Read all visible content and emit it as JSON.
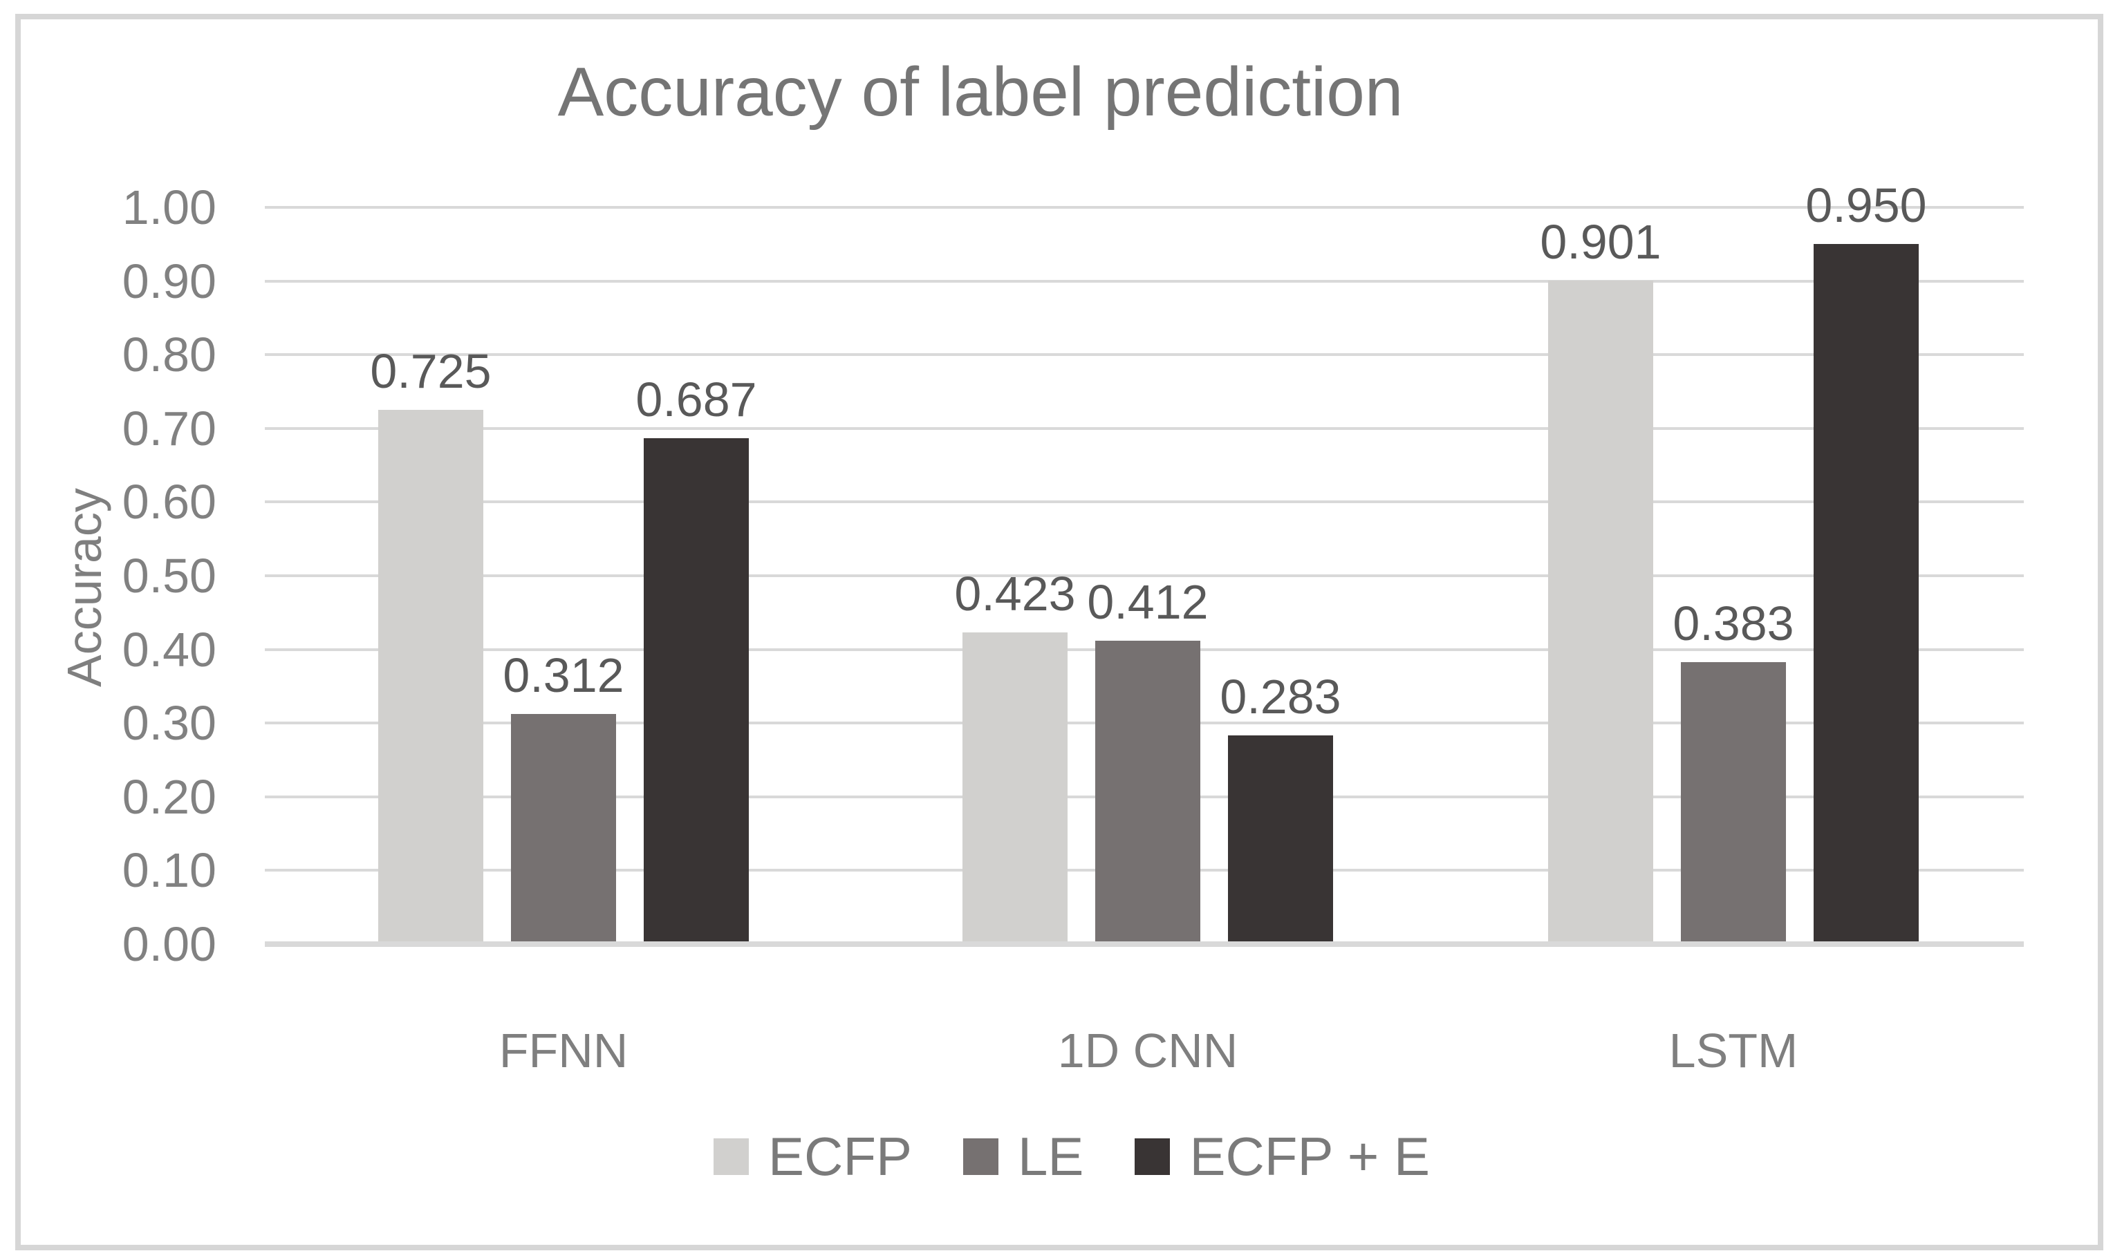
{
  "chart_data": {
    "type": "bar",
    "title": "Accuracy of label prediction",
    "xlabel": "",
    "ylabel": "Accuracy",
    "categories": [
      "FFNN",
      "1D CNN",
      "LSTM"
    ],
    "series": [
      {
        "name": "ECFP",
        "color": "#d1d0ce",
        "values": [
          0.725,
          0.423,
          0.901
        ],
        "labels": [
          "0.725",
          "0.423",
          "0.901"
        ]
      },
      {
        "name": "LE",
        "color": "#767171",
        "values": [
          0.312,
          0.412,
          0.383
        ],
        "labels": [
          "0.312",
          "0.412",
          "0.383"
        ]
      },
      {
        "name": "ECFP + E",
        "color": "#393434",
        "values": [
          0.687,
          0.283,
          0.95
        ],
        "labels": [
          "0.687",
          "0.283",
          "0.950"
        ]
      }
    ],
    "ylim": [
      0.0,
      1.0
    ],
    "ytick_step": 0.1,
    "yticks": [
      {
        "value": 1.0,
        "label": "1.00"
      },
      {
        "value": 0.9,
        "label": "0.90"
      },
      {
        "value": 0.8,
        "label": "0.80"
      },
      {
        "value": 0.7,
        "label": "0.70"
      },
      {
        "value": 0.6,
        "label": "0.60"
      },
      {
        "value": 0.5,
        "label": "0.50"
      },
      {
        "value": 0.4,
        "label": "0.40"
      },
      {
        "value": 0.3,
        "label": "0.30"
      },
      {
        "value": 0.2,
        "label": "0.20"
      },
      {
        "value": 0.1,
        "label": "0.10"
      },
      {
        "value": 0.0,
        "label": "0.00"
      }
    ],
    "grid": true,
    "legend_position": "bottom",
    "colors": {
      "gridline": "#d9d9d9",
      "axis_line": "#d9d9d9",
      "frame_border": "#d6d6d6",
      "title_text": "#757575",
      "tick_text": "#818181",
      "category_text": "#7f7f7f",
      "data_label_text": "#595959",
      "legend_text": "#7a7a7a"
    }
  }
}
